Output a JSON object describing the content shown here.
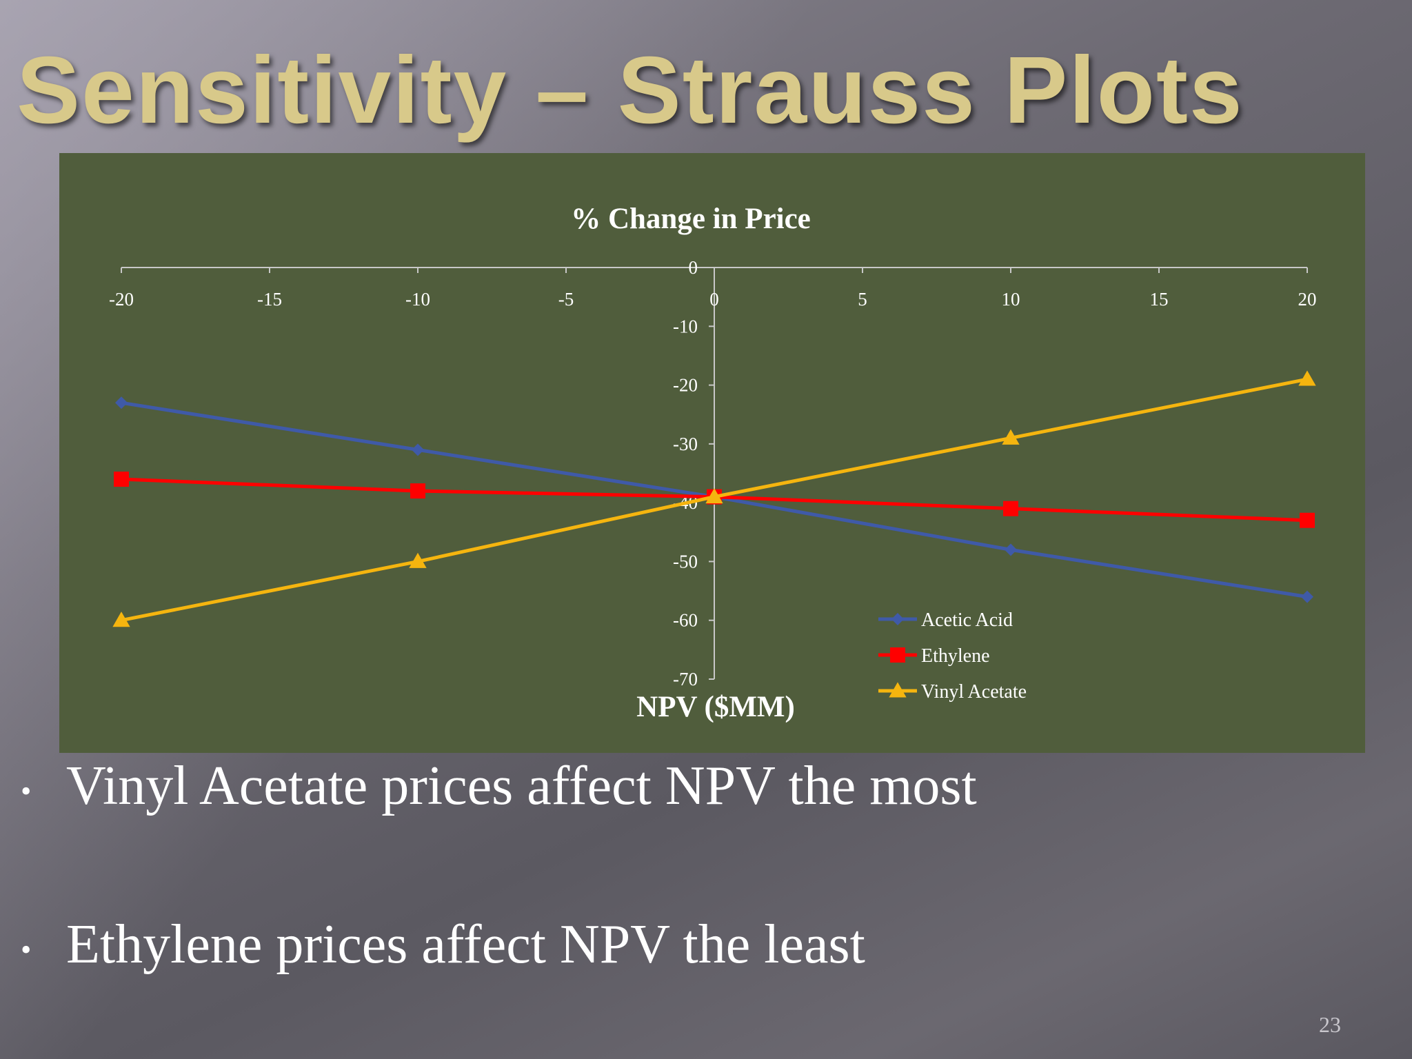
{
  "slide": {
    "title": "Sensitivity – Strauss Plots",
    "bullets": [
      "Vinyl Acetate prices affect NPV the most",
      "Ethylene prices affect NPV the least"
    ],
    "page_number": "23"
  },
  "colors": {
    "chart_bg": "#505d3c",
    "axis": "#c8c8c8",
    "title_gold": "#d8c98a"
  },
  "chart_data": {
    "type": "line",
    "title": "% Change in Price",
    "xlabel": "",
    "ylabel": "NPV ($MM)",
    "xlim": [
      -20,
      20
    ],
    "ylim": [
      -70,
      0
    ],
    "x_ticks": [
      -20,
      -15,
      -10,
      -5,
      0,
      5,
      10,
      15,
      20
    ],
    "y_ticks": [
      0,
      -10,
      -20,
      -30,
      -40,
      -50,
      -60,
      -70
    ],
    "legend_position": "bottom-right",
    "grid": false,
    "series": [
      {
        "name": "Acetic Acid",
        "color": "#3f5aa8",
        "marker": "diamond",
        "x": [
          -20,
          -10,
          0,
          10,
          20
        ],
        "values": [
          -23,
          -31,
          -39,
          -48,
          -56
        ]
      },
      {
        "name": "Ethylene",
        "color": "#ff0000",
        "marker": "square",
        "x": [
          -20,
          -10,
          0,
          10,
          20
        ],
        "values": [
          -36,
          -38,
          -39,
          -41,
          -43
        ]
      },
      {
        "name": "Vinyl Acetate",
        "color": "#f5b50f",
        "marker": "triangle",
        "x": [
          -20,
          -10,
          0,
          10,
          20
        ],
        "values": [
          -60,
          -50,
          -39,
          -29,
          -19
        ]
      }
    ]
  }
}
